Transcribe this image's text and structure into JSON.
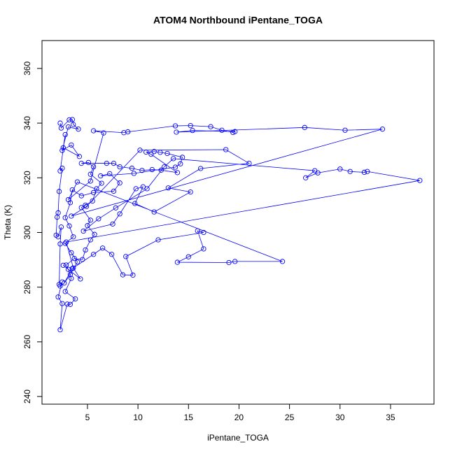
{
  "chart_data": {
    "type": "line",
    "markers": true,
    "title": "ATOM4 Northbound iPentane_TOGA",
    "xlabel": "iPentane_TOGA",
    "ylabel": "Theta (K)",
    "color": "#0000ff",
    "x": [
      2.3,
      2.4,
      3.2,
      3.5,
      3.6,
      4.1,
      3.1,
      2.5,
      3.4,
      4.2,
      2.6,
      2.8,
      2.3,
      2.5,
      2.2,
      2.1,
      2.0,
      1.9,
      2.1,
      2.4,
      2.3,
      2.2,
      2.3,
      2.5,
      2.1,
      2.5,
      2.3,
      3.0,
      3.3,
      3.8,
      2.8,
      3.4,
      3.1,
      2.9,
      3.7,
      4.5,
      4.8,
      5.3,
      5.7,
      5.0,
      5.3,
      4.4,
      4.8,
      5.5,
      5.9,
      6.4,
      5.3,
      5.6,
      5.1,
      4.4,
      6.9,
      7.6,
      8.2,
      9.4,
      10.4,
      11.4,
      12.3,
      13.9,
      11.3,
      10.8,
      11.6,
      12.2,
      12.9,
      14.4,
      14.2,
      13.7,
      9.6,
      6.3,
      7.2,
      8.2,
      7.6,
      5.6,
      4.4,
      3.5,
      3.3,
      2.8,
      3.2,
      3.6,
      2.8,
      3.4,
      4.0,
      3.3,
      2.7,
      3.5,
      5.6,
      6.5,
      7.4,
      8.5,
      9.5,
      8.8,
      12.0,
      16.5,
      15.9,
      16.5,
      15.0,
      13.9,
      19.0,
      19.6,
      24.3,
      4.0,
      3.1,
      5.3,
      6.6,
      5.6,
      8.6,
      9.0,
      13.7,
      15.2,
      17.2,
      18.3,
      19.4,
      19.6,
      15.4,
      13.8,
      26.5,
      30.5,
      34.2,
      3.4,
      4.9,
      10.2,
      18.7,
      21.0,
      16.2,
      13.0,
      15.2,
      11.6,
      9.7,
      10.5,
      9.8,
      8.2,
      7.5,
      4.6,
      6.1,
      7.8,
      10.9,
      12.6,
      13.5,
      27.5,
      26.6,
      27.8,
      30.0,
      31.0,
      32.4,
      32.7,
      37.9,
      2.9,
      3.6,
      4.3,
      2.6
    ],
    "values": [
      340.0,
      338.2,
      341.2,
      341.3,
      339.5,
      337.8,
      338.6,
      330.0,
      332.0,
      327.8,
      331.0,
      335.8,
      322.5,
      323.5,
      315.0,
      307.2,
      305.6,
      299.0,
      298.4,
      302.0,
      295.8,
      281.0,
      280.4,
      281.9,
      276.4,
      274.0,
      264.4,
      273.8,
      273.7,
      275.7,
      278.4,
      283.2,
      286.5,
      288.1,
      290.5,
      290.1,
      293.6,
      297.3,
      299.3,
      302.5,
      304.5,
      309.1,
      310.0,
      311.5,
      316.0,
      318.0,
      321.3,
      324.0,
      325.6,
      325.3,
      325.3,
      325.3,
      324.0,
      323.5,
      322.7,
      323.0,
      322.8,
      321.9,
      328.6,
      329.4,
      329.6,
      329.3,
      328.9,
      327.5,
      325.1,
      323.9,
      321.6,
      320.7,
      321.5,
      318.1,
      315.1,
      314.6,
      313.4,
      315.6,
      310.9,
      305.4,
      302.4,
      298.4,
      296.0,
      292.6,
      289.2,
      284.6,
      281.5,
      286.8,
      292.0,
      294.3,
      292.0,
      284.5,
      284.4,
      291.2,
      297.3,
      300.0,
      300.6,
      294.0,
      291.1,
      289.1,
      289.0,
      289.4,
      289.4,
      318.5,
      312.0,
      318.8,
      336.4,
      337.2,
      336.5,
      336.8,
      339.0,
      339.1,
      338.7,
      337.4,
      336.6,
      336.9,
      337.3,
      336.7,
      338.4,
      337.4,
      337.8,
      306.0,
      309.5,
      330.1,
      330.3,
      325.3,
      323.4,
      316.3,
      314.8,
      307.5,
      310.6,
      316.7,
      316.0,
      306.8,
      303.1,
      300.5,
      305.0,
      309.0,
      316.0,
      324.0,
      327.0,
      322.6,
      320.0,
      321.8,
      323.2,
      322.3,
      322.0,
      322.3,
      319.0,
      296.5,
      287.0,
      283.0,
      288.0
    ],
    "xlim": [
      0.5,
      39.3
    ],
    "ylim": [
      237.2,
      370.2
    ],
    "xticks": [
      5,
      10,
      15,
      20,
      25,
      30,
      35
    ],
    "yticks": [
      240,
      260,
      280,
      300,
      320,
      340,
      360
    ]
  }
}
